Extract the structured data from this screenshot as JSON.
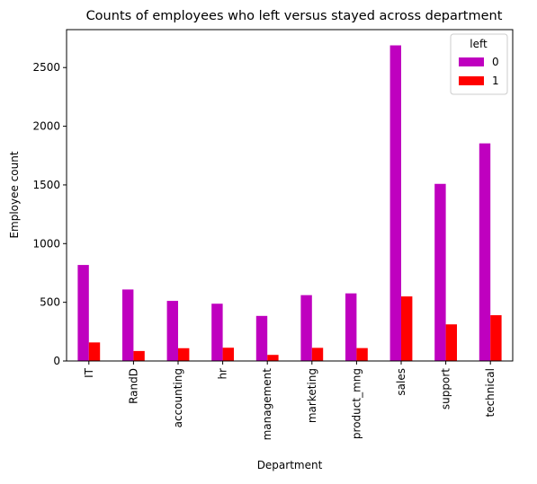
{
  "chart_data": {
    "type": "bar",
    "title": "Counts of employees who left versus stayed across department",
    "xlabel": "Department",
    "ylabel": "Employee count",
    "categories": [
      "IT",
      "RandD",
      "accounting",
      "hr",
      "management",
      "marketing",
      "product_mng",
      "sales",
      "support",
      "technical"
    ],
    "series": [
      {
        "name": "0",
        "color": "#bf00bf",
        "values": [
          818,
          609,
          512,
          488,
          384,
          561,
          576,
          2689,
          1509,
          1854
        ]
      },
      {
        "name": "1",
        "color": "#ff0000",
        "values": [
          158,
          85,
          109,
          113,
          52,
          112,
          110,
          550,
          312,
          390
        ]
      }
    ],
    "ylim": [
      0,
      2823
    ],
    "yticks": [
      0,
      500,
      1000,
      1500,
      2000,
      2500
    ],
    "legend": {
      "title": "left",
      "position": "top-right"
    },
    "grid": false
  }
}
